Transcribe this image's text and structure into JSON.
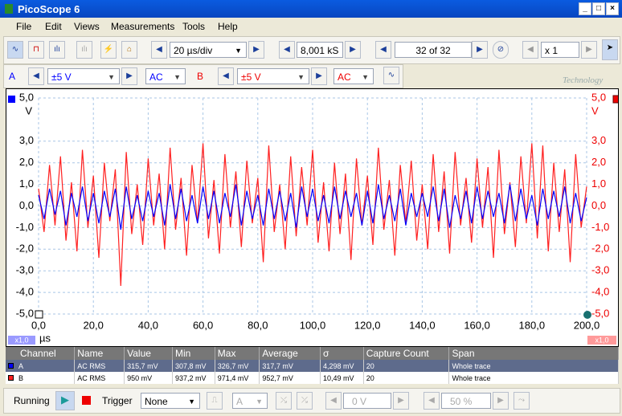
{
  "window": {
    "title": "PicoScope 6"
  },
  "menu": [
    "File",
    "Edit",
    "Views",
    "Measurements",
    "Tools",
    "Help"
  ],
  "toolbar": {
    "timebase": "20 µs/div",
    "samples": "8,001 kS",
    "buffer": "32 of 32",
    "zoom": "x 1"
  },
  "channels": [
    {
      "range": "±5 V",
      "coupling": "AC"
    },
    {
      "range": "±5 V",
      "coupling": "AC"
    }
  ],
  "logo": "Technology",
  "chart_data": {
    "type": "line",
    "x_unit": "µs",
    "y_unit": "V",
    "y2_unit": "V",
    "scale_labels": [
      "x1,0",
      "x1,0"
    ],
    "xlim": [
      0,
      200
    ],
    "xticks": [
      {
        "value": 0,
        "label": "0,0"
      },
      {
        "value": 20,
        "label": "20,0"
      },
      {
        "value": 40,
        "label": "40,0"
      },
      {
        "value": 60,
        "label": "60,0"
      },
      {
        "value": 80,
        "label": "80,0"
      },
      {
        "value": 100,
        "label": "100,0"
      },
      {
        "value": 120,
        "label": "120,0"
      },
      {
        "value": 140,
        "label": "140,0"
      },
      {
        "value": 160,
        "label": "160,0"
      },
      {
        "value": 180,
        "label": "180,0"
      },
      {
        "value": 200,
        "label": "200,0"
      }
    ],
    "ylim": [
      -5,
      5
    ],
    "yticks": [
      {
        "value": 5,
        "label": "5,0"
      },
      {
        "value": 3,
        "label": "3,0"
      },
      {
        "value": 2,
        "label": "2,0"
      },
      {
        "value": 1,
        "label": "1,0"
      },
      {
        "value": 0,
        "label": "0,0"
      },
      {
        "value": -1,
        "label": "-1,0"
      },
      {
        "value": -2,
        "label": "-2,0"
      },
      {
        "value": -3,
        "label": "-3,0"
      },
      {
        "value": -4,
        "label": "-4,0"
      },
      {
        "value": -5,
        "label": "-5,0"
      }
    ],
    "y2lim": [
      -5,
      5
    ],
    "y2ticks": [
      {
        "value": 5,
        "label": "5,0"
      },
      {
        "value": 3,
        "label": "3,0"
      },
      {
        "value": 2,
        "label": "2,0"
      },
      {
        "value": 1,
        "label": "1,0"
      },
      {
        "value": 0,
        "label": "0,0"
      },
      {
        "value": -1,
        "label": "-1,0"
      },
      {
        "value": -2,
        "label": "-2,0"
      },
      {
        "value": -3,
        "label": "-3,0"
      },
      {
        "value": -4,
        "label": "-4,0"
      },
      {
        "value": -5,
        "label": "-5,0"
      }
    ],
    "grid": true,
    "x": [
      0,
      2,
      4,
      6,
      8,
      10,
      12,
      14,
      16,
      18,
      20,
      22,
      24,
      26,
      28,
      30,
      32,
      34,
      36,
      38,
      40,
      42,
      44,
      46,
      48,
      50,
      52,
      54,
      56,
      58,
      60,
      62,
      64,
      66,
      68,
      70,
      72,
      74,
      76,
      78,
      80,
      82,
      84,
      86,
      88,
      90,
      92,
      94,
      96,
      98,
      100,
      102,
      104,
      106,
      108,
      110,
      112,
      114,
      116,
      118,
      120,
      122,
      124,
      126,
      128,
      130,
      132,
      134,
      136,
      138,
      140,
      142,
      144,
      146,
      148,
      150,
      152,
      154,
      156,
      158,
      160,
      162,
      164,
      166,
      168,
      170,
      172,
      174,
      176,
      178,
      180,
      182,
      184,
      186,
      188,
      190,
      192,
      194,
      196,
      198,
      200
    ],
    "series": [
      {
        "name": "A",
        "color": "#0000ff",
        "values": [
          0.5,
          -0.6,
          0.8,
          -0.4,
          0.7,
          -0.9,
          0.6,
          -0.5,
          0.9,
          -0.7,
          0.6,
          -0.8,
          0.7,
          -0.5,
          0.8,
          -1.1,
          0.9,
          -0.6,
          0.5,
          -0.7,
          0.7,
          -0.5,
          0.6,
          -0.9,
          1.0,
          -0.6,
          0.8,
          -0.7,
          0.5,
          -0.8,
          0.9,
          -0.6,
          0.7,
          -0.8,
          0.6,
          -0.5,
          1.0,
          -0.9,
          0.7,
          -0.6,
          0.5,
          -0.9,
          0.8,
          -0.6,
          0.7,
          -0.7,
          0.6,
          -1.0,
          0.9,
          -0.5,
          0.8,
          -0.7,
          0.5,
          -0.8,
          0.9,
          -0.6,
          0.7,
          -0.5,
          0.6,
          -0.9,
          0.7,
          -0.8,
          1.0,
          -0.6,
          0.5,
          -0.7,
          0.8,
          -0.9,
          0.6,
          -0.5,
          0.6,
          -0.5,
          0.9,
          -0.7,
          0.8,
          -1.0,
          0.5,
          -0.6,
          0.7,
          -0.8,
          0.9,
          -0.6,
          0.7,
          -0.5,
          0.6,
          -0.8,
          1.0,
          -0.7,
          0.8,
          -0.6,
          0.5,
          -0.9,
          0.8,
          -0.6,
          0.7,
          -0.5,
          0.9,
          -0.8,
          0.6,
          -0.7,
          0.4
        ]
      },
      {
        "name": "B",
        "color": "#ff2020",
        "axis": "y2",
        "values": [
          0.8,
          -1.2,
          1.9,
          -0.9,
          2.3,
          -1.6,
          1.1,
          -2.1,
          2.6,
          -1.0,
          1.4,
          -2.4,
          2.0,
          -0.7,
          1.7,
          -3.7,
          2.5,
          -1.3,
          1.0,
          -1.8,
          2.2,
          -0.9,
          1.5,
          -2.0,
          2.7,
          -1.1,
          1.3,
          -2.3,
          1.9,
          -0.8,
          2.9,
          -1.5,
          1.2,
          -2.2,
          2.4,
          -1.0,
          1.6,
          -1.9,
          2.1,
          -0.8,
          1.3,
          -2.6,
          2.8,
          -1.2,
          1.0,
          -2.0,
          2.3,
          -1.4,
          1.8,
          -0.9,
          2.6,
          -1.7,
          1.1,
          -2.1,
          2.0,
          -1.3,
          1.5,
          -2.5,
          2.2,
          -0.9,
          1.4,
          -1.8,
          2.7,
          -1.1,
          1.2,
          -2.3,
          1.9,
          -0.8,
          2.1,
          -1.6,
          1.0,
          -2.0,
          2.4,
          -1.2,
          1.6,
          -2.2,
          2.5,
          -0.9,
          1.3,
          -1.7,
          2.2,
          -1.0,
          1.8,
          -2.4,
          2.6,
          -1.3,
          1.1,
          -1.9,
          2.3,
          -0.8,
          2.9,
          -1.5,
          2.8,
          -2.1,
          2.0,
          -1.2,
          1.7,
          -2.6,
          2.4,
          -1.0,
          0.9
        ]
      }
    ]
  },
  "measurements": {
    "columns": [
      "Channel",
      "Name",
      "Value",
      "Min",
      "Max",
      "Average",
      "σ",
      "Capture Count",
      "Span"
    ],
    "rows": [
      [
        "A",
        "AC RMS",
        "315,7 mV",
        "307,8 mV",
        "326,7 mV",
        "317,7 mV",
        "4,298 mV",
        "20",
        "Whole trace"
      ],
      [
        "B",
        "AC RMS",
        "950 mV",
        "937,2 mV",
        "971,4 mV",
        "952,7 mV",
        "10,49 mV",
        "20",
        "Whole trace"
      ]
    ]
  },
  "status": {
    "state": "Running",
    "trigger_label": "Trigger",
    "trigger_mode": "None",
    "trigger_channel": "A",
    "trigger_level": "0 V",
    "pre_trigger": "50 %"
  }
}
